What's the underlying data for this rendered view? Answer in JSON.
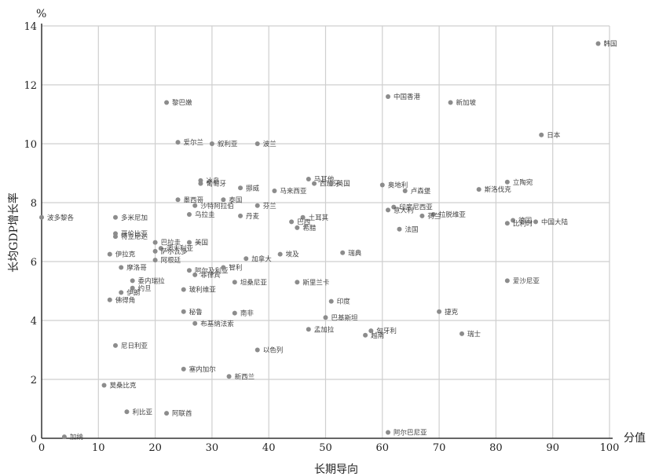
{
  "chart_data": {
    "type": "scatter",
    "xlabel": "长期导向",
    "ylabel": "长均GDP增长率",
    "x_unit": "分值",
    "y_unit": "%",
    "xlim": [
      0,
      100
    ],
    "ylim": [
      0,
      14
    ],
    "xticks": [
      0,
      10,
      20,
      30,
      40,
      50,
      60,
      70,
      80,
      90,
      100
    ],
    "yticks": [
      0,
      2,
      4,
      6,
      8,
      10,
      12,
      14
    ],
    "grid": true,
    "point_color": "#8c8c8c",
    "points": [
      {
        "label": "韩国",
        "x": 98,
        "y": 13.4
      },
      {
        "label": "中国香港",
        "x": 61,
        "y": 11.6
      },
      {
        "label": "新加坡",
        "x": 72,
        "y": 11.4
      },
      {
        "label": "黎巴嫩",
        "x": 22,
        "y": 11.4
      },
      {
        "label": "日本",
        "x": 88,
        "y": 10.3
      },
      {
        "label": "爱尔兰",
        "x": 24,
        "y": 10.05
      },
      {
        "label": "叙利亚",
        "x": 30,
        "y": 10.0
      },
      {
        "label": "波兰",
        "x": 38,
        "y": 10.0
      },
      {
        "label": "马耳他",
        "x": 47,
        "y": 8.8
      },
      {
        "label": "冰岛",
        "x": 28,
        "y": 8.75
      },
      {
        "label": "葡萄牙",
        "x": 28,
        "y": 8.65
      },
      {
        "label": "西班牙",
        "x": 48,
        "y": 8.65
      },
      {
        "label": "英国",
        "x": 51,
        "y": 8.65
      },
      {
        "label": "奥地利",
        "x": 60,
        "y": 8.6
      },
      {
        "label": "立陶宛",
        "x": 82,
        "y": 8.7
      },
      {
        "label": "斯洛伐克",
        "x": 77,
        "y": 8.45
      },
      {
        "label": "卢森堡",
        "x": 64,
        "y": 8.4
      },
      {
        "label": "挪威",
        "x": 35,
        "y": 8.5
      },
      {
        "label": "马来西亚",
        "x": 41,
        "y": 8.4
      },
      {
        "label": "墨西哥",
        "x": 24,
        "y": 8.1
      },
      {
        "label": "泰国",
        "x": 32,
        "y": 8.1
      },
      {
        "label": "沙特阿拉伯",
        "x": 27,
        "y": 7.9
      },
      {
        "label": "芬兰",
        "x": 38,
        "y": 7.9
      },
      {
        "label": "印度尼西亚",
        "x": 62,
        "y": 7.85
      },
      {
        "label": "意大利",
        "x": 61,
        "y": 7.75
      },
      {
        "label": "拉脱维亚",
        "x": 69,
        "y": 7.6
      },
      {
        "label": "荷兰",
        "x": 67,
        "y": 7.55
      },
      {
        "label": "波多黎各",
        "x": 0,
        "y": 7.5
      },
      {
        "label": "多米尼加",
        "x": 13,
        "y": 7.5
      },
      {
        "label": "乌拉圭",
        "x": 26,
        "y": 7.6
      },
      {
        "label": "丹麦",
        "x": 35,
        "y": 7.55
      },
      {
        "label": "土耳其",
        "x": 46,
        "y": 7.5
      },
      {
        "label": "巴西",
        "x": 44,
        "y": 7.35
      },
      {
        "label": "希腊",
        "x": 45,
        "y": 7.15
      },
      {
        "label": "德国",
        "x": 83,
        "y": 7.4
      },
      {
        "label": "中国大陆",
        "x": 87,
        "y": 7.35
      },
      {
        "label": "比利时",
        "x": 82,
        "y": 7.3
      },
      {
        "label": "法国",
        "x": 63,
        "y": 7.1
      },
      {
        "label": "哥伦比亚",
        "x": 13,
        "y": 6.95
      },
      {
        "label": "特立尼达",
        "x": 13,
        "y": 6.85
      },
      {
        "label": "巴拉圭",
        "x": 20,
        "y": 6.65
      },
      {
        "label": "美国",
        "x": 26,
        "y": 6.65
      },
      {
        "label": "澳大利亚",
        "x": 21,
        "y": 6.45
      },
      {
        "label": "萨尔瓦多",
        "x": 20,
        "y": 6.35
      },
      {
        "label": "伊拉克",
        "x": 12,
        "y": 6.25
      },
      {
        "label": "埃及",
        "x": 42,
        "y": 6.25
      },
      {
        "label": "瑞典",
        "x": 53,
        "y": 6.3
      },
      {
        "label": "阿根廷",
        "x": 20,
        "y": 6.05
      },
      {
        "label": "加拿大",
        "x": 36,
        "y": 6.1
      },
      {
        "label": "摩洛哥",
        "x": 14,
        "y": 5.8
      },
      {
        "label": "阿尔及利亚",
        "x": 26,
        "y": 5.7
      },
      {
        "label": "智利",
        "x": 32,
        "y": 5.8
      },
      {
        "label": "菲律宾",
        "x": 27,
        "y": 5.55
      },
      {
        "label": "委内瑞拉",
        "x": 16,
        "y": 5.35
      },
      {
        "label": "坦桑尼亚",
        "x": 34,
        "y": 5.3
      },
      {
        "label": "斯里兰卡",
        "x": 45,
        "y": 5.3
      },
      {
        "label": "爱沙尼亚",
        "x": 82,
        "y": 5.35
      },
      {
        "label": "约旦",
        "x": 16,
        "y": 5.1
      },
      {
        "label": "伊朗",
        "x": 14,
        "y": 4.95
      },
      {
        "label": "玻利维亚",
        "x": 25,
        "y": 5.05
      },
      {
        "label": "印度",
        "x": 51,
        "y": 4.65
      },
      {
        "label": "佛得角",
        "x": 12,
        "y": 4.7
      },
      {
        "label": "秘鲁",
        "x": 25,
        "y": 4.3
      },
      {
        "label": "南非",
        "x": 34,
        "y": 4.25
      },
      {
        "label": "捷克",
        "x": 70,
        "y": 4.3
      },
      {
        "label": "巴基斯坦",
        "x": 50,
        "y": 4.1
      },
      {
        "label": "布基纳法索",
        "x": 27,
        "y": 3.9
      },
      {
        "label": "孟加拉",
        "x": 47,
        "y": 3.7
      },
      {
        "label": "匈牙利",
        "x": 58,
        "y": 3.65
      },
      {
        "label": "越南",
        "x": 57,
        "y": 3.5
      },
      {
        "label": "瑞士",
        "x": 74,
        "y": 3.55
      },
      {
        "label": "尼日利亚",
        "x": 13,
        "y": 3.15
      },
      {
        "label": "以色列",
        "x": 38,
        "y": 3.0
      },
      {
        "label": "塞内加尔",
        "x": 25,
        "y": 2.35
      },
      {
        "label": "新西兰",
        "x": 33,
        "y": 2.1
      },
      {
        "label": "莫桑比克",
        "x": 11,
        "y": 1.8
      },
      {
        "label": "利比亚",
        "x": 15,
        "y": 0.9
      },
      {
        "label": "阿联酋",
        "x": 22,
        "y": 0.85
      },
      {
        "label": "加纳",
        "x": 4,
        "y": 0.05
      },
      {
        "label": "阿尔巴尼亚",
        "x": 61,
        "y": 0.2
      }
    ]
  }
}
